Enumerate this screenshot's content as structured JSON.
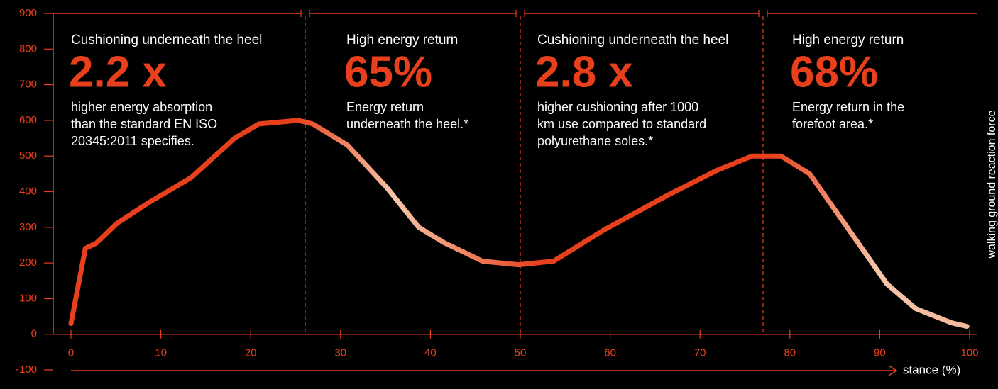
{
  "chart_data": {
    "type": "line",
    "color": "#e8401c",
    "x_label": "stance (%)",
    "y_label": "walking ground reaction force",
    "x": [
      0,
      1.6,
      2.8,
      5.1,
      8.7,
      13.4,
      18.2,
      20.9,
      25.3,
      26.9,
      30.8,
      35.2,
      38.7,
      41.5,
      45.8,
      49.8,
      53.7,
      59.2,
      66.4,
      71.9,
      75.8,
      79.0,
      82.2,
      86.9,
      90.8,
      94.0,
      98.0,
      99.7
    ],
    "values": [
      30,
      241,
      255,
      311,
      370,
      440,
      550,
      590,
      600,
      590,
      530,
      410,
      300,
      257,
      205,
      195,
      205,
      291,
      390,
      460,
      500,
      500,
      450,
      281,
      141,
      72,
      32,
      22
    ],
    "xlim": [
      0,
      100
    ],
    "xticks": [
      0,
      10,
      20,
      30,
      40,
      50,
      60,
      70,
      80,
      90,
      100
    ],
    "ylim": [
      -100,
      900
    ],
    "yticks": [
      900,
      800,
      700,
      600,
      500,
      400,
      300,
      200,
      100,
      0,
      -100
    ],
    "annotations": [
      {
        "heading": "Cushioning underneath the heel",
        "value": "2.2 x",
        "text": [
          "higher energy absorption",
          "than the standard EN ISO",
          "20345:2011 specifies."
        ]
      },
      {
        "heading": "High energy return",
        "value": "65%",
        "text": [
          "Energy return",
          "underneath the heel.*"
        ]
      },
      {
        "heading": "Cushioning underneath the heel",
        "value": "2.8 x",
        "text": [
          "higher cushioning after 1000",
          "km use compared to standard",
          "polyurethane soles.*"
        ]
      },
      {
        "heading": "High energy return",
        "value": "68%",
        "text": [
          "Energy return in the",
          "forefoot area.*"
        ]
      }
    ]
  }
}
